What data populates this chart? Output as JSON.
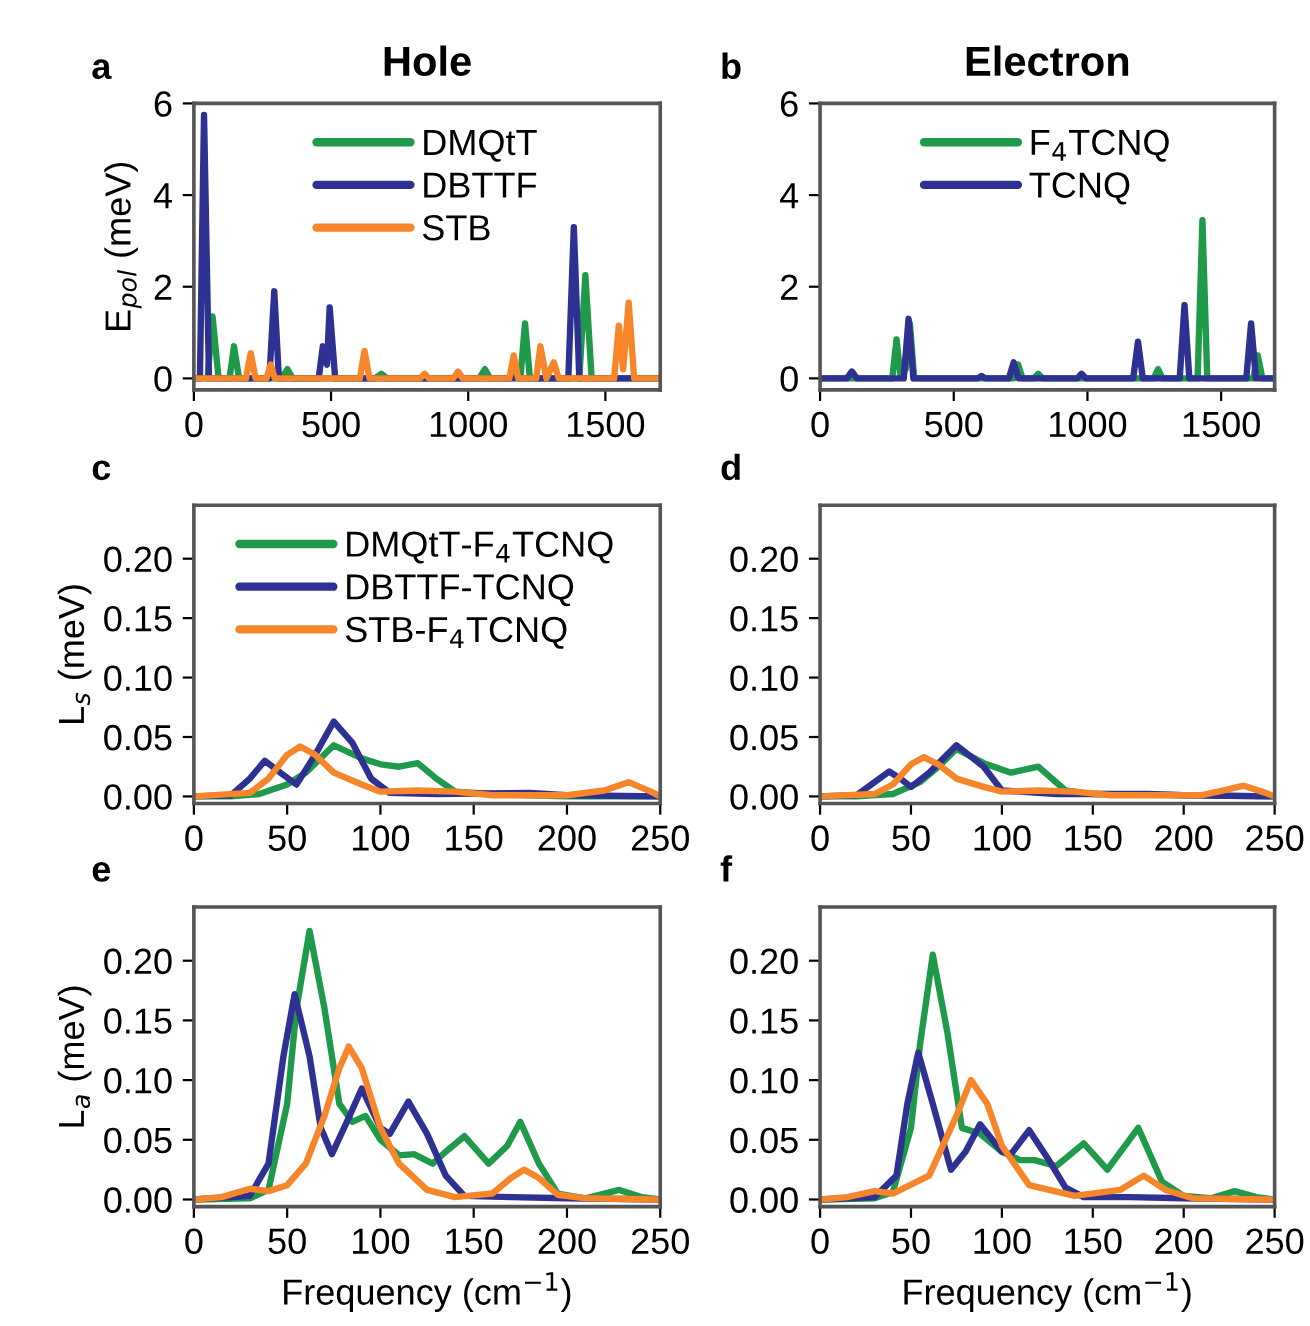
{
  "chart_data": [
    {
      "type": "line",
      "title": "Hole",
      "ylabel": "E$_{pol}$ (meV)",
      "annotations": [
        "a"
      ],
      "xlim": [
        0,
        1700
      ],
      "ylim": [
        -0.25,
        6
      ],
      "xticks": [
        0,
        500,
        1000,
        1500
      ],
      "yticks": [
        0,
        2,
        4,
        6
      ],
      "legend": "top",
      "grid": false,
      "marker": "none",
      "line_style": "solid",
      "series": [
        {
          "name": "DMQtT",
          "color": "#1f9a4a",
          "x": [
            0,
            50,
            68,
            90,
            130,
            146,
            165,
            320,
            341,
            360,
            660,
            683,
            705,
            1040,
            1061,
            1080,
            1150,
            1170,
            1190,
            1207,
            1225,
            1405,
            1427,
            1450,
            1700
          ],
          "values": [
            0,
            0,
            1.35,
            0,
            0,
            0.7,
            0,
            0,
            0.2,
            0,
            0,
            0.1,
            0,
            0,
            0.2,
            0,
            0,
            0.3,
            0,
            1.2,
            0,
            0,
            2.25,
            0,
            0
          ]
        },
        {
          "name": "DBTTF",
          "color": "#2e3192",
          "x": [
            0,
            22,
            37,
            55,
            275,
            293,
            310,
            455,
            470,
            485,
            495,
            515,
            1365,
            1385,
            1405,
            1700
          ],
          "values": [
            0,
            0,
            5.75,
            0,
            0,
            1.9,
            0,
            0,
            0.7,
            0.3,
            1.55,
            0,
            0,
            3.3,
            0,
            0
          ]
        },
        {
          "name": "STB",
          "color": "#f7862a",
          "x": [
            0,
            190,
            207,
            225,
            265,
            280,
            295,
            605,
            622,
            640,
            825,
            841,
            857,
            945,
            963,
            980,
            1150,
            1166,
            1182,
            1248,
            1263,
            1285,
            1312,
            1330,
            1532,
            1549,
            1565,
            1585,
            1605,
            1700
          ],
          "values": [
            0,
            0,
            0.55,
            0,
            0,
            0.3,
            0,
            0,
            0.6,
            0,
            0,
            0.1,
            0,
            0,
            0.15,
            0,
            0,
            0.5,
            0,
            0,
            0.7,
            0,
            0.35,
            0,
            0,
            1.15,
            0.2,
            1.65,
            0,
            0
          ]
        }
      ]
    },
    {
      "type": "line",
      "title": "Electron",
      "annotations": [
        "b"
      ],
      "xlim": [
        0,
        1700
      ],
      "ylim": [
        -0.25,
        6
      ],
      "xticks": [
        0,
        500,
        1000,
        1500
      ],
      "yticks": [
        0,
        2,
        4,
        6
      ],
      "legend": "top",
      "grid": false,
      "marker": "none",
      "line_style": "solid",
      "series": [
        {
          "name": "F$_{4}$TCNQ",
          "color": "#1f9a4a",
          "x": [
            0,
            270,
            286,
            300,
            320,
            336,
            352,
            725,
            741,
            757,
            800,
            816,
            832,
            1248,
            1264,
            1280,
            1412,
            1430,
            1448,
            1620,
            1637,
            1654,
            1700
          ],
          "values": [
            0,
            0,
            0.85,
            0.1,
            0.2,
            1.2,
            0,
            0,
            0.3,
            0,
            0,
            0.1,
            0,
            0,
            0.2,
            0,
            0,
            3.45,
            0,
            0,
            0.5,
            0,
            0
          ]
        },
        {
          "name": "TCNQ",
          "color": "#2e3192",
          "x": [
            0,
            100,
            119,
            138,
            313,
            331,
            349,
            590,
            604,
            618,
            706,
            724,
            742,
            962,
            978,
            994,
            1171,
            1189,
            1207,
            1345,
            1363,
            1381,
            1594,
            1612,
            1630,
            1700
          ],
          "values": [
            0,
            0,
            0.15,
            0,
            0,
            1.3,
            0,
            0,
            0.05,
            0,
            0,
            0.35,
            0,
            0,
            0.1,
            0,
            0,
            0.8,
            0,
            0,
            1.6,
            0,
            0,
            1.2,
            0,
            0
          ]
        }
      ]
    },
    {
      "type": "line",
      "ylabel": "L$_{s}$ (meV)",
      "annotations": [
        "c"
      ],
      "xlim": [
        0,
        250
      ],
      "ylim": [
        -0.006,
        0.245
      ],
      "xticks": [
        0,
        50,
        100,
        150,
        200,
        250
      ],
      "yticks": [
        {
          "value": 0,
          "label": "0.00"
        },
        {
          "value": 0.05,
          "label": "0.05"
        },
        {
          "value": 0.1,
          "label": "0.10"
        },
        {
          "value": 0.15,
          "label": "0.15"
        },
        {
          "value": 0.2,
          "label": "0.20"
        }
      ],
      "legend": "top",
      "grid": false,
      "marker": "none",
      "line_style": "solid",
      "series": [
        {
          "name": "DMQtT-F$_{4}$TCNQ",
          "color": "#1f9a4a",
          "x": [
            0,
            20,
            35,
            50,
            60,
            75,
            90,
            100,
            110,
            120,
            130,
            140,
            160,
            180,
            200,
            250
          ],
          "values": [
            0,
            0,
            0.002,
            0.01,
            0.02,
            0.043,
            0.032,
            0.027,
            0.025,
            0.028,
            0.015,
            0.004,
            0.002,
            0.001,
            0,
            0
          ]
        },
        {
          "name": "DBTTF-TCNQ",
          "color": "#2e3192",
          "x": [
            0,
            20,
            30,
            38,
            48,
            55,
            65,
            75,
            85,
            95,
            105,
            130,
            180,
            200,
            250
          ],
          "values": [
            0,
            0.001,
            0.015,
            0.03,
            0.018,
            0.01,
            0.035,
            0.063,
            0.045,
            0.015,
            0.003,
            0.002,
            0.003,
            0.001,
            0
          ]
        },
        {
          "name": "STB-F$_{4}$TCNQ",
          "color": "#f7862a",
          "x": [
            0,
            30,
            40,
            50,
            57,
            65,
            75,
            90,
            100,
            120,
            140,
            160,
            200,
            220,
            233,
            245,
            250
          ],
          "values": [
            0,
            0.003,
            0.015,
            0.035,
            0.042,
            0.035,
            0.02,
            0.01,
            0.004,
            0.005,
            0.004,
            0.001,
            0.001,
            0.005,
            0.012,
            0.004,
            0
          ]
        }
      ]
    },
    {
      "type": "line",
      "annotations": [
        "d"
      ],
      "xlim": [
        0,
        250
      ],
      "ylim": [
        -0.006,
        0.245
      ],
      "xticks": [
        0,
        50,
        100,
        150,
        200,
        250
      ],
      "yticks": [
        {
          "value": 0,
          "label": "0.00"
        },
        {
          "value": 0.05,
          "label": "0.05"
        },
        {
          "value": 0.1,
          "label": "0.10"
        },
        {
          "value": 0.15,
          "label": "0.15"
        },
        {
          "value": 0.2,
          "label": "0.20"
        }
      ],
      "grid": false,
      "marker": "none",
      "line_style": "solid",
      "series": [
        {
          "color": "#1f9a4a",
          "x": [
            0,
            20,
            40,
            55,
            65,
            75,
            90,
            105,
            120,
            135,
            150,
            250
          ],
          "values": [
            0,
            0,
            0.002,
            0.012,
            0.025,
            0.04,
            0.028,
            0.02,
            0.025,
            0.005,
            0.002,
            0
          ]
        },
        {
          "color": "#2e3192",
          "x": [
            0,
            20,
            30,
            38,
            45,
            50,
            60,
            75,
            90,
            100,
            130,
            180,
            200,
            250
          ],
          "values": [
            0,
            0.001,
            0.012,
            0.021,
            0.014,
            0.008,
            0.02,
            0.043,
            0.025,
            0.005,
            0.002,
            0.002,
            0.001,
            0
          ]
        },
        {
          "color": "#f7862a",
          "x": [
            0,
            30,
            40,
            50,
            57,
            65,
            75,
            90,
            100,
            120,
            140,
            160,
            210,
            222,
            233,
            245,
            250
          ],
          "values": [
            0,
            0.002,
            0.01,
            0.027,
            0.033,
            0.027,
            0.015,
            0.008,
            0.004,
            0.005,
            0.004,
            0.001,
            0.001,
            0.005,
            0.009,
            0.003,
            0
          ]
        }
      ]
    },
    {
      "type": "line",
      "xlabel": "Frequency (cm$^{−1}$)",
      "ylabel": "L$_{a}$ (meV)",
      "annotations": [
        "e"
      ],
      "xlim": [
        0,
        250
      ],
      "ylim": [
        -0.006,
        0.245
      ],
      "xticks": [
        0,
        50,
        100,
        150,
        200,
        250
      ],
      "yticks": [
        {
          "value": 0,
          "label": "0.00"
        },
        {
          "value": 0.05,
          "label": "0.05"
        },
        {
          "value": 0.1,
          "label": "0.10"
        },
        {
          "value": 0.15,
          "label": "0.15"
        },
        {
          "value": 0.2,
          "label": "0.20"
        }
      ],
      "grid": false,
      "marker": "none",
      "line_style": "solid",
      "series": [
        {
          "color": "#1f9a4a",
          "x": [
            0,
            30,
            40,
            50,
            55,
            62,
            70,
            78,
            85,
            92,
            100,
            110,
            118,
            128,
            135,
            145,
            158,
            168,
            175,
            185,
            195,
            210,
            228,
            240,
            250
          ],
          "values": [
            0,
            0.001,
            0.008,
            0.08,
            0.16,
            0.225,
            0.16,
            0.08,
            0.065,
            0.07,
            0.05,
            0.037,
            0.038,
            0.03,
            0.04,
            0.053,
            0.03,
            0.045,
            0.065,
            0.03,
            0.005,
            0.001,
            0.008,
            0.002,
            0
          ]
        },
        {
          "color": "#2e3192",
          "x": [
            0,
            30,
            40,
            48,
            54,
            62,
            68,
            74,
            82,
            90,
            100,
            105,
            115,
            125,
            135,
            145,
            170,
            200,
            250
          ],
          "values": [
            0,
            0.003,
            0.03,
            0.12,
            0.172,
            0.12,
            0.06,
            0.038,
            0.065,
            0.093,
            0.06,
            0.055,
            0.082,
            0.055,
            0.02,
            0.003,
            0.002,
            0.001,
            0
          ]
        },
        {
          "color": "#f7862a",
          "x": [
            0,
            15,
            30,
            40,
            50,
            60,
            70,
            78,
            83,
            90,
            100,
            110,
            125,
            140,
            160,
            170,
            177,
            185,
            195,
            210,
            250
          ],
          "values": [
            0,
            0.002,
            0.009,
            0.007,
            0.012,
            0.03,
            0.07,
            0.11,
            0.128,
            0.11,
            0.06,
            0.03,
            0.008,
            0.002,
            0.005,
            0.018,
            0.025,
            0.018,
            0.004,
            0.001,
            0
          ]
        }
      ]
    },
    {
      "type": "line",
      "xlabel": "Frequency (cm$^{−1}$)",
      "annotations": [
        "f"
      ],
      "xlim": [
        0,
        250
      ],
      "ylim": [
        -0.006,
        0.245
      ],
      "xticks": [
        0,
        50,
        100,
        150,
        200,
        250
      ],
      "yticks": [
        {
          "value": 0,
          "label": "0.00"
        },
        {
          "value": 0.05,
          "label": "0.05"
        },
        {
          "value": 0.1,
          "label": "0.10"
        },
        {
          "value": 0.15,
          "label": "0.15"
        },
        {
          "value": 0.2,
          "label": "0.20"
        }
      ],
      "grid": false,
      "marker": "none",
      "line_style": "solid",
      "series": [
        {
          "color": "#1f9a4a",
          "x": [
            0,
            30,
            40,
            50,
            55,
            62,
            70,
            78,
            88,
            100,
            110,
            118,
            130,
            145,
            158,
            175,
            188,
            200,
            215,
            228,
            240,
            250
          ],
          "values": [
            0,
            0.001,
            0.006,
            0.06,
            0.13,
            0.205,
            0.14,
            0.06,
            0.055,
            0.04,
            0.033,
            0.033,
            0.028,
            0.047,
            0.025,
            0.06,
            0.015,
            0.003,
            0.001,
            0.007,
            0.002,
            0
          ]
        },
        {
          "color": "#2e3192",
          "x": [
            0,
            30,
            42,
            48,
            54,
            62,
            72,
            80,
            88,
            100,
            105,
            115,
            125,
            135,
            145,
            170,
            200,
            250
          ],
          "values": [
            0,
            0.002,
            0.02,
            0.08,
            0.123,
            0.08,
            0.025,
            0.04,
            0.063,
            0.04,
            0.038,
            0.058,
            0.035,
            0.01,
            0.002,
            0.002,
            0.001,
            0
          ]
        },
        {
          "color": "#f7862a",
          "x": [
            0,
            15,
            30,
            40,
            60,
            75,
            83,
            92,
            100,
            115,
            140,
            165,
            178,
            190,
            205,
            250
          ],
          "values": [
            0,
            0.002,
            0.007,
            0.005,
            0.02,
            0.07,
            0.1,
            0.08,
            0.045,
            0.012,
            0.003,
            0.008,
            0.02,
            0.008,
            0.001,
            0
          ]
        }
      ]
    }
  ]
}
